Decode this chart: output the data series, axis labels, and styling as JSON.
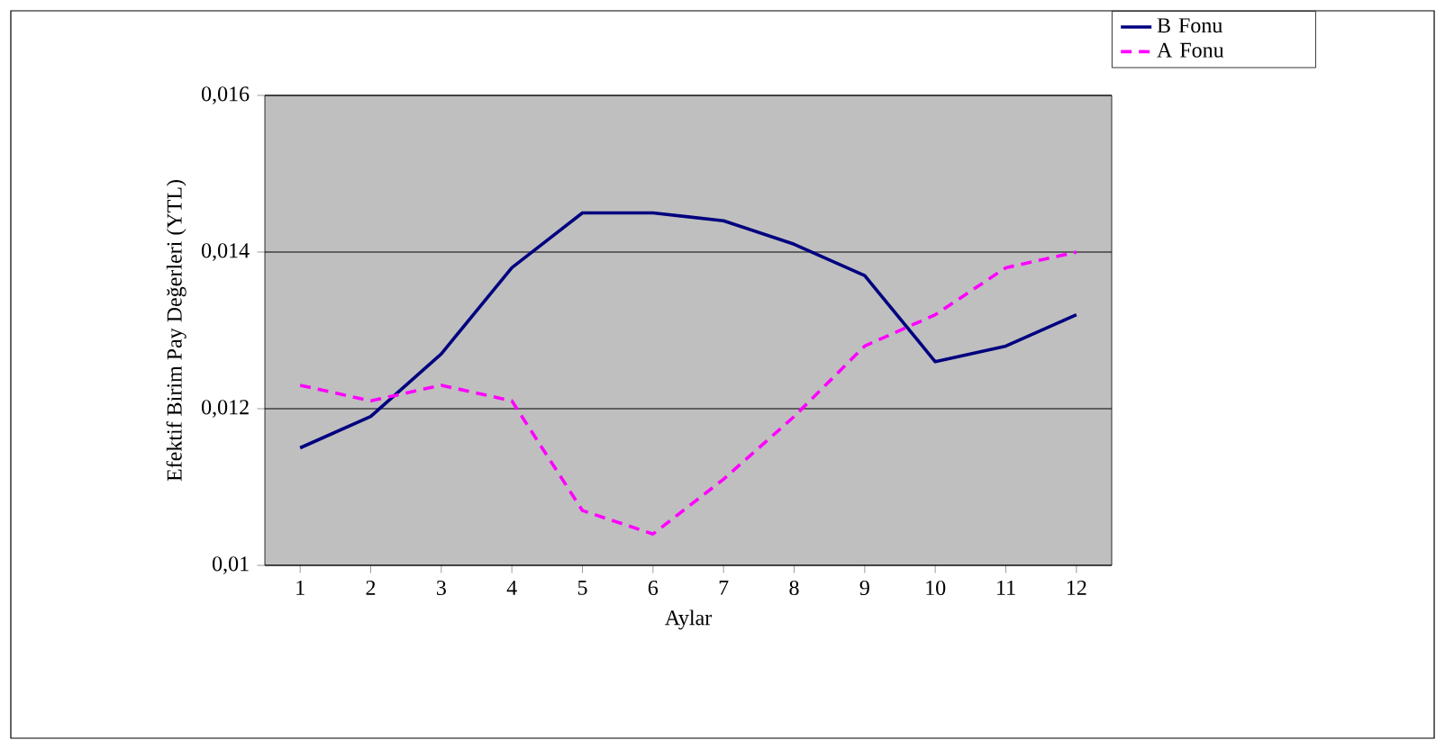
{
  "chart_data": {
    "type": "line",
    "xlabel": "Aylar",
    "ylabel": "Efektif Birim Pay Değerleri (YTL)",
    "categories": [
      "1",
      "2",
      "3",
      "4",
      "5",
      "6",
      "7",
      "8",
      "9",
      "10",
      "11",
      "12"
    ],
    "series": [
      {
        "name": "B Fonu",
        "color": "#000080",
        "line_style": "solid",
        "values": [
          0.0115,
          0.0119,
          0.0127,
          0.0138,
          0.0145,
          0.0145,
          0.0144,
          0.0141,
          0.0137,
          0.0126,
          0.0128,
          0.0132
        ]
      },
      {
        "name": "A Fonu",
        "color": "#ff00ff",
        "line_style": "dashed",
        "values": [
          0.0123,
          0.0121,
          0.0123,
          0.0121,
          0.0107,
          0.0104,
          0.0111,
          0.0119,
          0.0128,
          0.0132,
          0.0138,
          0.014
        ]
      }
    ],
    "ylim": [
      0.01,
      0.016
    ],
    "yticks": [
      {
        "value": 0.01,
        "label": "0,01"
      },
      {
        "value": 0.012,
        "label": "0,012"
      },
      {
        "value": 0.014,
        "label": "0,014"
      },
      {
        "value": 0.016,
        "label": "0,016"
      }
    ],
    "grid": "y",
    "legend": "top right",
    "marker": "none"
  }
}
